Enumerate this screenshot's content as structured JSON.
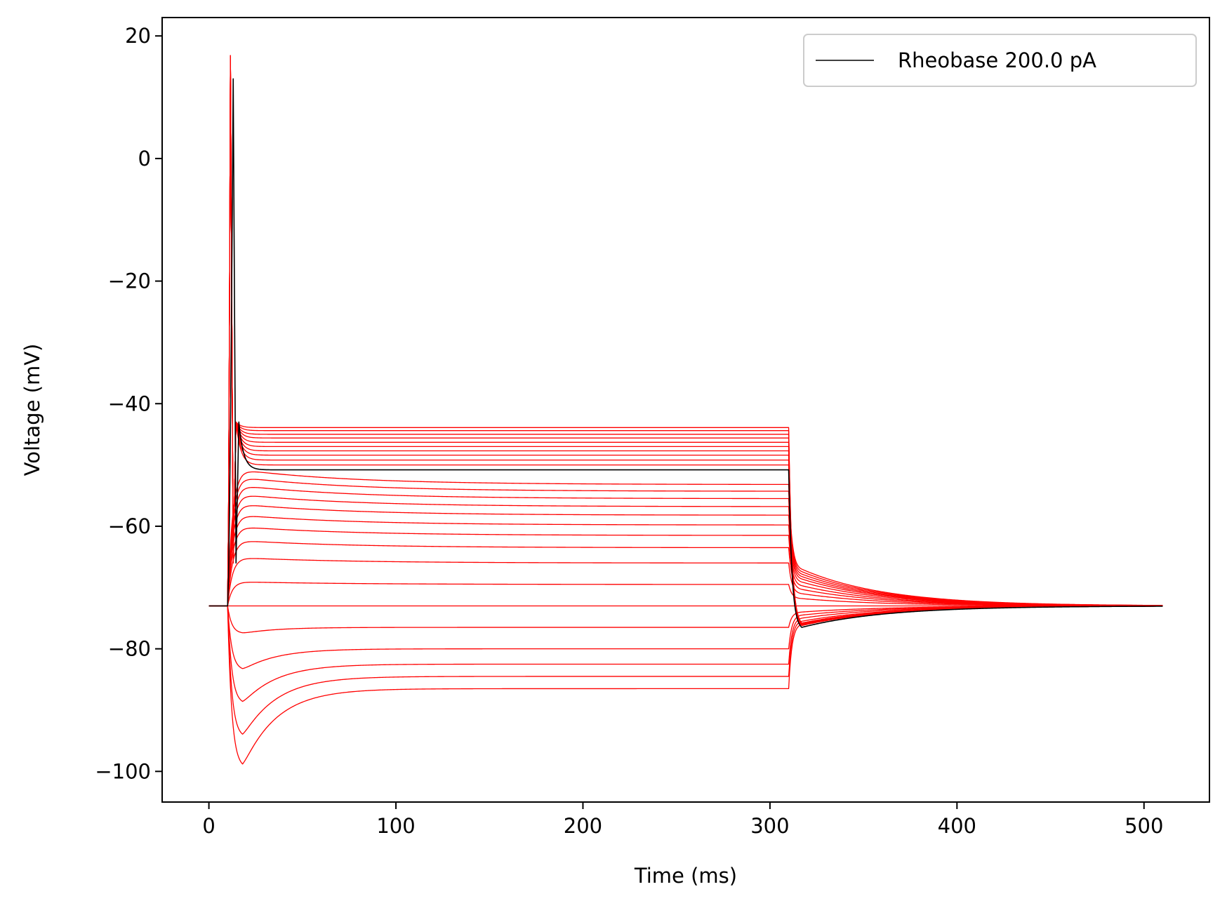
{
  "chart_data": {
    "type": "line",
    "title": "",
    "xlabel": "Time (ms)",
    "ylabel": "Voltage (mV)",
    "xlim": [
      -25,
      535
    ],
    "ylim": [
      -105,
      23
    ],
    "xticks": [
      0,
      100,
      200,
      300,
      400,
      500
    ],
    "yticks": [
      -100,
      -80,
      -60,
      -40,
      -20,
      0,
      20
    ],
    "xtick_labels": [
      "0",
      "100",
      "200",
      "300",
      "400",
      "500"
    ],
    "ytick_labels": [
      "−100",
      "−80",
      "−60",
      "−40",
      "−20",
      "0",
      "20"
    ],
    "colors": {
      "sweeps": "#ff0000",
      "rheobase": "#000000"
    },
    "legend": {
      "label": "Rheobase 200.0 pA",
      "position": "top-right"
    },
    "stimulus": {
      "start_ms": 10,
      "end_ms": 310,
      "duration_ms": 510,
      "resting_mV": -73.0
    },
    "hyperpolarizing_sweeps": [
      {
        "trough": -99.5,
        "steady": -86.5,
        "rebound": -76.0
      },
      {
        "trough": -94.5,
        "steady": -84.5,
        "rebound": -75.5
      },
      {
        "trough": -89.0,
        "steady": -82.5,
        "rebound": -75.0
      },
      {
        "trough": -83.5,
        "steady": -80.0,
        "rebound": -74.5
      },
      {
        "trough": -77.5,
        "steady": -76.5,
        "rebound": -74.0
      }
    ],
    "depolarizing_sweeps": [
      {
        "steady": -73.0,
        "rebound": -73.0
      },
      {
        "steady": -69.5,
        "rebound": -71.8
      },
      {
        "steady": -66.0,
        "rebound": -71.0
      },
      {
        "steady": -63.5,
        "rebound": -70.3
      },
      {
        "steady": -61.5,
        "rebound": -69.7
      },
      {
        "steady": -59.8,
        "rebound": -69.1
      },
      {
        "steady": -58.2,
        "rebound": -68.6
      },
      {
        "steady": -56.8,
        "rebound": -68.2
      },
      {
        "steady": -55.5,
        "rebound": -67.8
      },
      {
        "steady": -54.3,
        "rebound": -67.4
      },
      {
        "steady": -53.2,
        "rebound": -67.0
      }
    ],
    "spiking_sweeps": [
      {
        "steady": -50.0,
        "peak": 16.5,
        "rebound": -76.2
      },
      {
        "steady": -49.2,
        "peak": 16.6,
        "rebound": -76.2
      },
      {
        "steady": -48.4,
        "peak": 16.6,
        "rebound": -76.1
      },
      {
        "steady": -47.7,
        "peak": 16.7,
        "rebound": -76.1
      },
      {
        "steady": -47.0,
        "peak": 16.7,
        "rebound": -76.0
      },
      {
        "steady": -46.3,
        "peak": 16.7,
        "rebound": -76.0
      },
      {
        "steady": -45.6,
        "peak": 16.8,
        "rebound": -75.9
      },
      {
        "steady": -45.0,
        "peak": 16.8,
        "rebound": -75.9
      },
      {
        "steady": -44.4,
        "peak": 16.8,
        "rebound": -75.8
      },
      {
        "steady": -43.9,
        "peak": 16.8,
        "rebound": -75.8
      }
    ],
    "rheobase_sweep": {
      "steady": -50.8,
      "peak": 13.0,
      "spike_time_ms": 13,
      "rebound": -76.5
    }
  }
}
